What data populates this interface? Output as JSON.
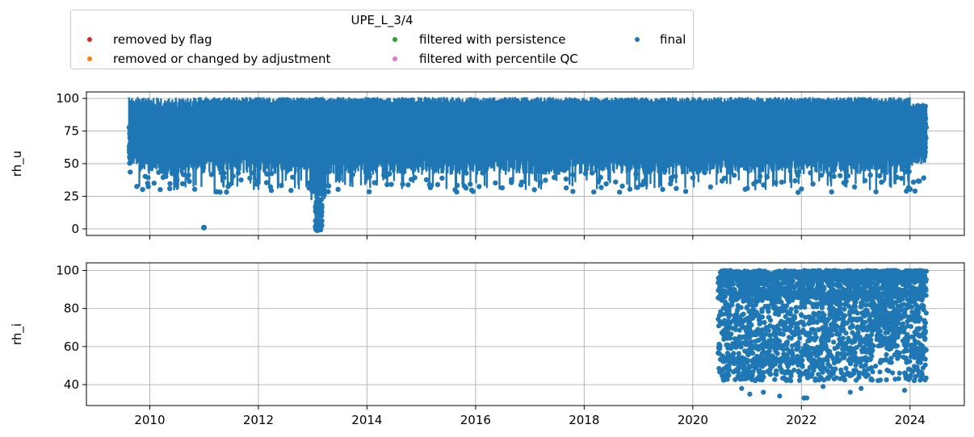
{
  "legend": {
    "title": "UPE_L_3/4",
    "entries": [
      {
        "label": "removed by flag",
        "color": "#d62728"
      },
      {
        "label": "removed or changed by adjustment",
        "color": "#ff7f0e"
      },
      {
        "label": "filtered with persistence",
        "color": "#2ca02c"
      },
      {
        "label": "filtered with percentile QC",
        "color": "#e377c2"
      },
      {
        "label": "final",
        "color": "#1f77b4"
      }
    ]
  },
  "chart_data": [
    {
      "type": "scatter",
      "ylabel": "rh_u",
      "xlim": [
        "2008-11-01",
        "2025-01-01"
      ],
      "ylim": [
        -5,
        105
      ],
      "yticks": [
        0,
        25,
        50,
        75,
        100
      ],
      "xticks": [
        "2010",
        "2012",
        "2014",
        "2016",
        "2018",
        "2020",
        "2022",
        "2024"
      ],
      "grid": true,
      "series": [
        {
          "name": "final",
          "color": "#1f77b4",
          "data_start": "2009-08-15",
          "data_end": "2024-04-20",
          "typical_range": [
            40,
            100
          ],
          "outliers": [
            {
              "x": "2010-12-31",
              "y": 1
            },
            {
              "x": "2013-02-01",
              "y": -1
            },
            {
              "x": "2013-02-15",
              "y": 10
            }
          ]
        }
      ]
    },
    {
      "type": "scatter",
      "ylabel": "rh_i",
      "xlim": [
        "2008-11-01",
        "2025-01-01"
      ],
      "ylim": [
        29,
        104
      ],
      "yticks": [
        40,
        60,
        80,
        100
      ],
      "xticks": [
        "2010",
        "2012",
        "2014",
        "2016",
        "2018",
        "2020",
        "2022",
        "2024"
      ],
      "xticklabels": [
        "2010",
        "2012",
        "2014",
        "2016",
        "2018",
        "2020",
        "2022",
        "2024"
      ],
      "grid": true,
      "series": [
        {
          "name": "final",
          "color": "#1f77b4",
          "data_start": "2020-06-20",
          "data_end": "2024-04-20",
          "typical_range": [
            45,
            100
          ],
          "min_value": 33
        }
      ]
    }
  ]
}
